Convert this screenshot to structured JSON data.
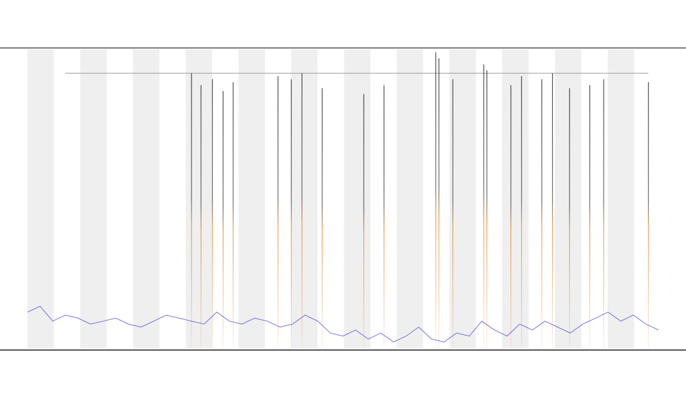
{
  "chart_data": {
    "type": "line",
    "xlim": [
      0,
      100
    ],
    "ylim": [
      0,
      100
    ],
    "x": [
      0,
      2,
      4,
      6,
      8,
      10,
      12,
      14,
      16,
      18,
      20,
      22,
      24,
      26,
      28,
      30,
      32,
      34,
      36,
      38,
      40,
      42,
      44,
      46,
      48,
      50,
      52,
      54,
      56,
      58,
      60,
      62,
      64,
      66,
      68,
      70,
      72,
      74,
      76,
      78,
      80,
      82,
      84,
      86,
      88,
      90,
      92,
      94,
      96,
      98,
      100
    ],
    "series": [
      {
        "color": "#3a3adf",
        "values": [
          12,
          14,
          9,
          11,
          10,
          8,
          9,
          10,
          8,
          7,
          9,
          11,
          10,
          9,
          8,
          12,
          9,
          8,
          10,
          9,
          7,
          8,
          11,
          9,
          5,
          4,
          6,
          3,
          5,
          2,
          4,
          7,
          3,
          2,
          5,
          4,
          9,
          6,
          4,
          8,
          6,
          9,
          7,
          5,
          8,
          10,
          12,
          9,
          11,
          8,
          6
        ]
      }
    ],
    "events": {
      "color": "#222222",
      "x": [
        26,
        27.5,
        29.3,
        31,
        32.6,
        39.7,
        41.8,
        43.5,
        46.7,
        53.3,
        56.5,
        64.7,
        65.2,
        67.4,
        72.3,
        72.8,
        76.6,
        78.3,
        81.5,
        83.2,
        85.9,
        89.1,
        91.3,
        98.4
      ],
      "values": [
        92,
        88,
        90,
        86,
        89,
        91,
        90,
        92,
        87,
        85,
        88,
        99,
        97,
        90,
        95,
        93,
        88,
        91,
        90,
        92,
        87,
        88,
        90,
        89
      ]
    }
  }
}
